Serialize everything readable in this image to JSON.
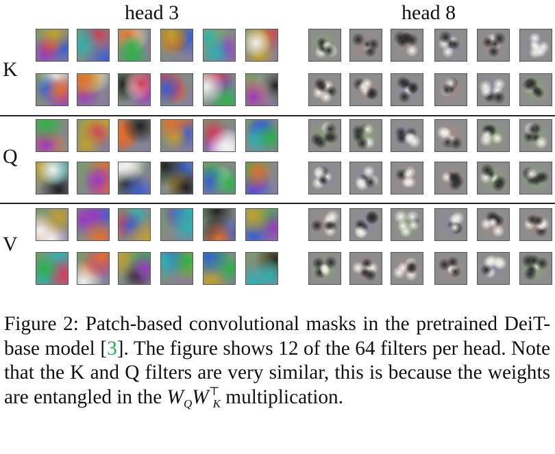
{
  "headers": {
    "left": "head 3",
    "right": "head 8"
  },
  "row_labels": [
    "K",
    "Q",
    "V"
  ],
  "caption": {
    "p1_before": "Figure 2:   Patch-based convolutional masks in the pretrained DeiT-base model [",
    "ref": "3",
    "p1_after": "]. The figure shows 12 of the 64 filters per head. Note that the K and Q filters are very similar, this is because the weights are entangled in the",
    "math_W": "W",
    "math_Q": "Q",
    "math_W2": "W",
    "math_sup": "⊤",
    "math_K": "K",
    "p2_after": " multiplication."
  },
  "filter_grid": {
    "groups": [
      "K",
      "Q",
      "V"
    ],
    "rows_per_group": 2,
    "filters_per_row_per_head": 6,
    "head3_style": "colorful smooth blobs (red, green, blue, purple)",
    "head8_style": "grey high-frequency textures",
    "colors": {
      "head3_palette": [
        "#6a9a3a",
        "#3a4fa8",
        "#b0406a",
        "#8a8a4a",
        "#5aa0a0"
      ],
      "head8_base": "#8a8a8a"
    }
  }
}
